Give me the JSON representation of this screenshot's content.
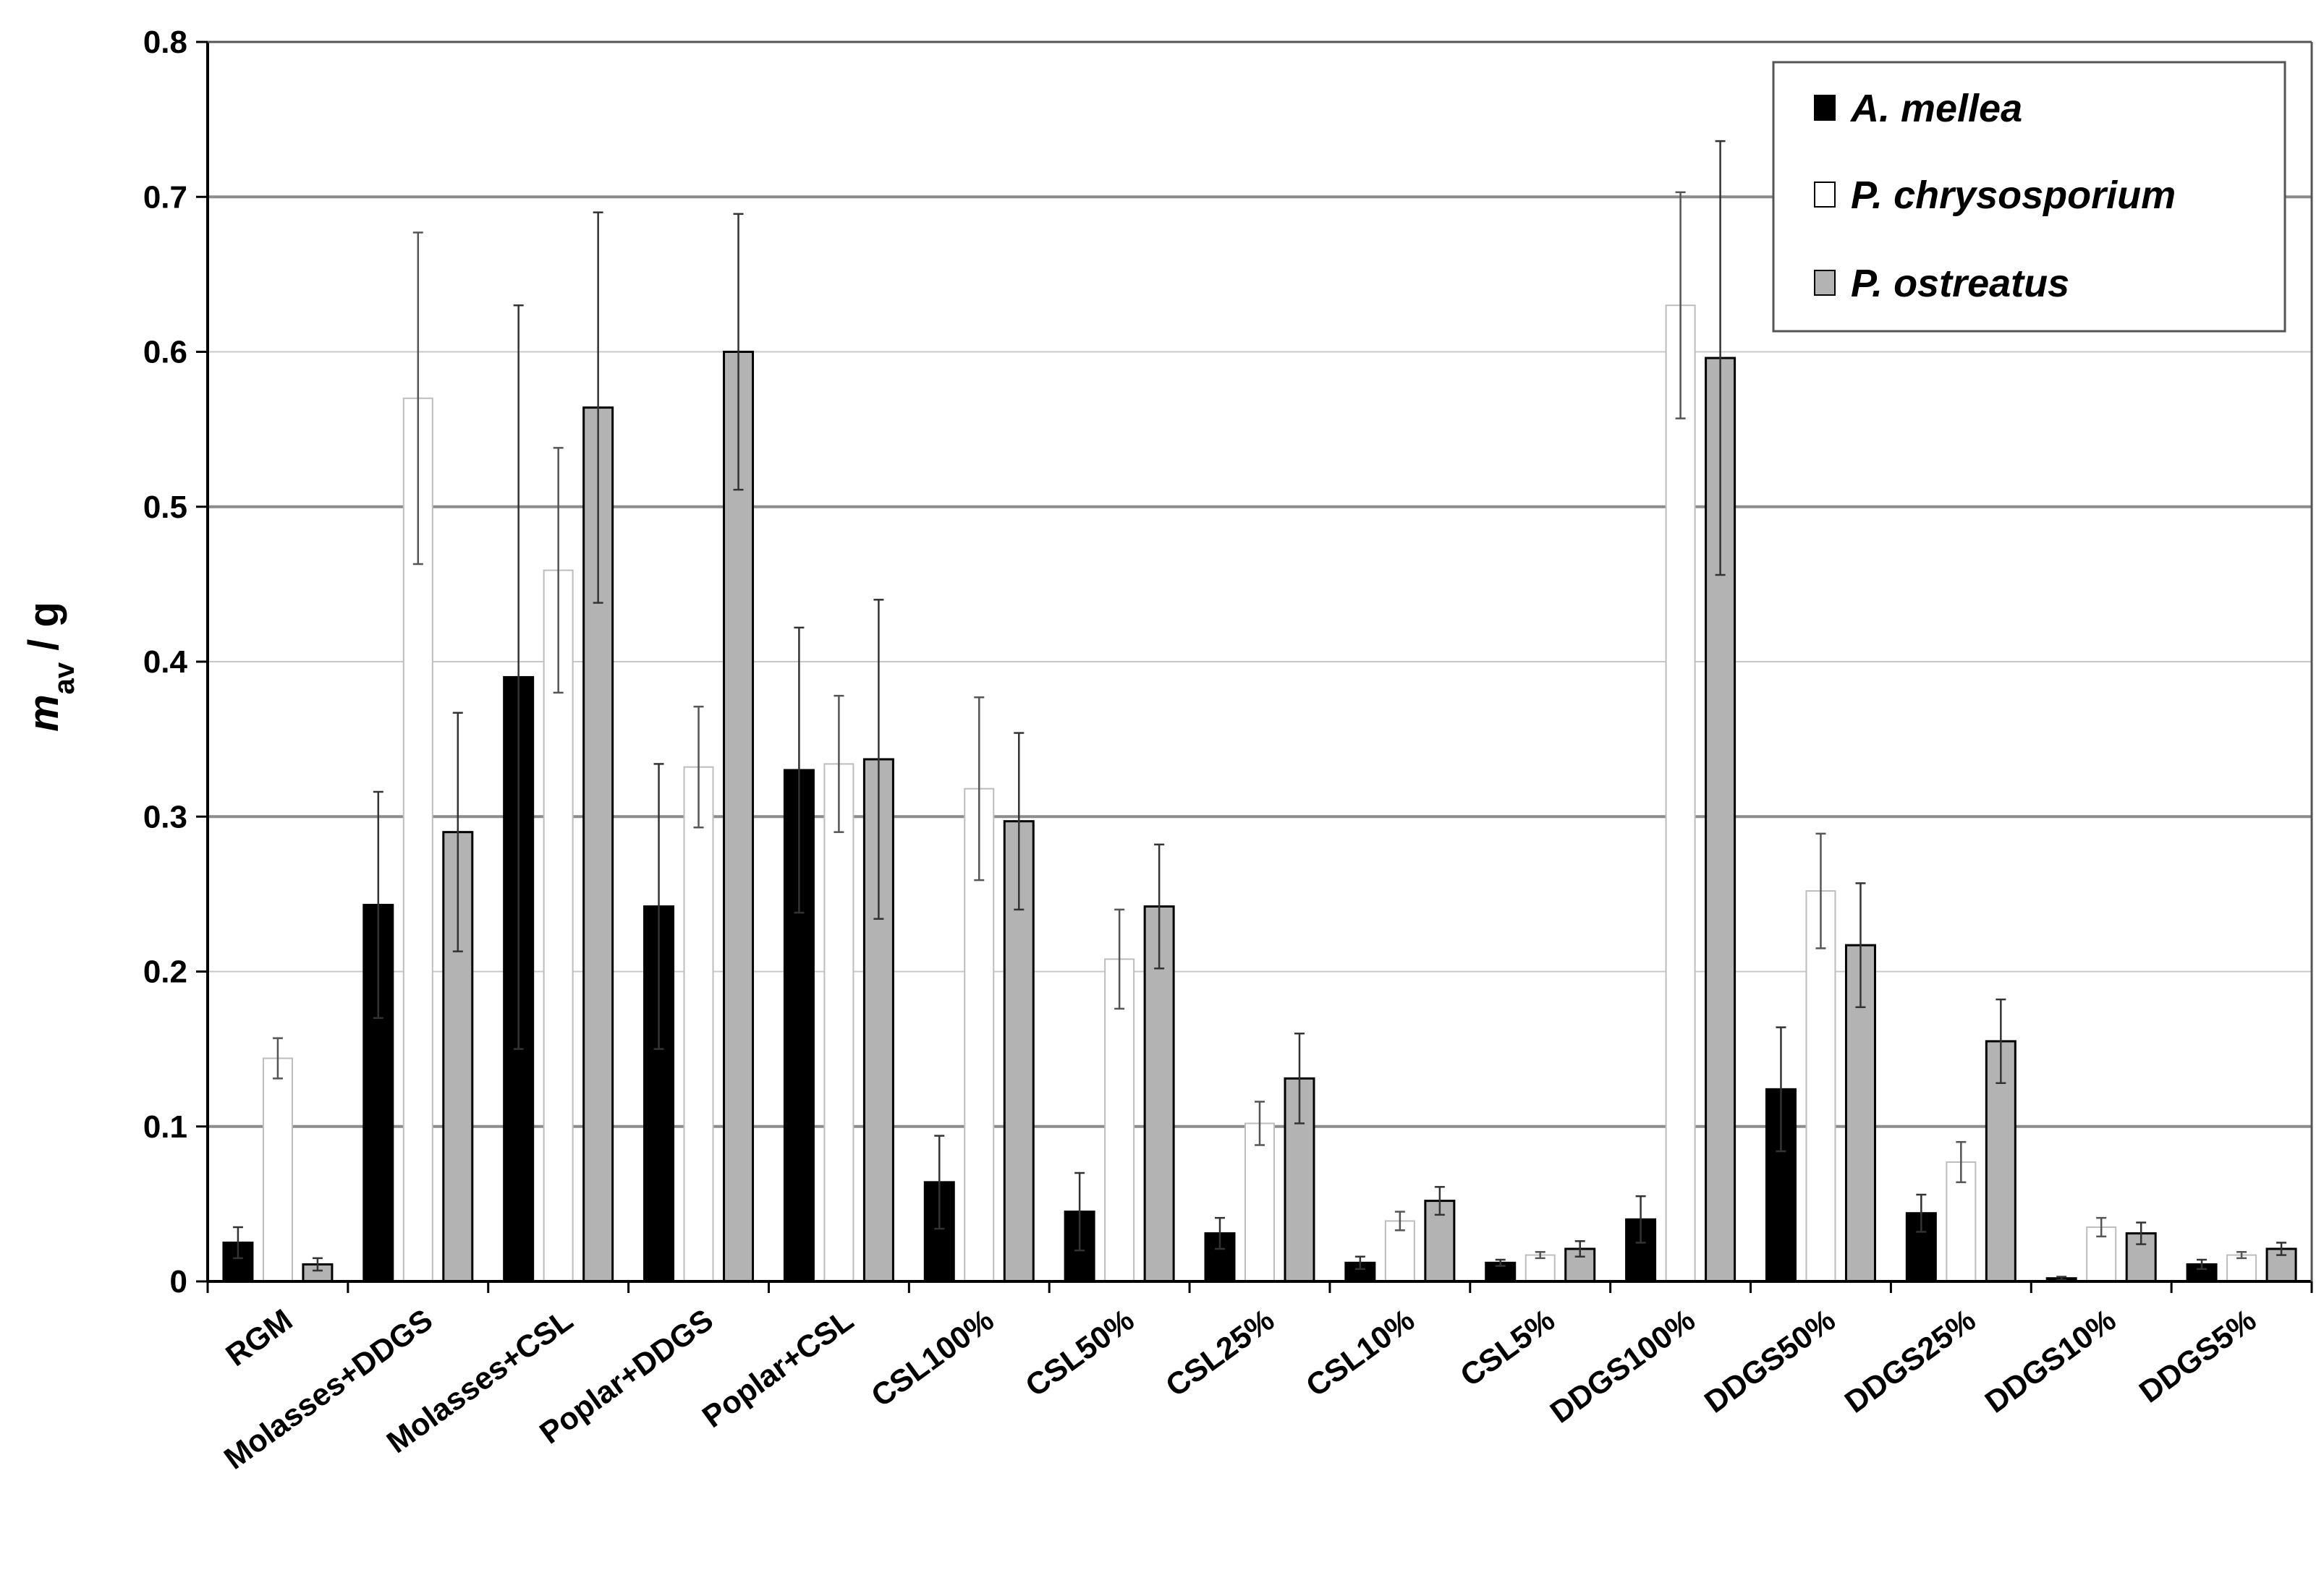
{
  "chart_data": {
    "type": "bar",
    "ylabel": "m",
    "ylabel_subscript": "av",
    "ylabel_unit": " / g",
    "ylim": [
      0,
      0.8
    ],
    "yticks": [
      "0",
      "0.1",
      "0.2",
      "0.3",
      "0.4",
      "0.5",
      "0.6",
      "0.7",
      "0.8"
    ],
    "grid": true,
    "legend_position": "top-right",
    "categories": [
      "RGM",
      "Molasses+DDGS",
      "Molasses+CSL",
      "Poplar+DDGS",
      "Poplar+CSL",
      "CSL100%",
      "CSL50%",
      "CSL25%",
      "CSL10%",
      "CSL5%",
      "DDGS100%",
      "DDGS50%",
      "DDGS25%",
      "DDGS10%",
      "DDGS5%"
    ],
    "series": [
      {
        "name": "A. mellea",
        "color": "#000000",
        "values": [
          0.025,
          0.243,
          0.39,
          0.242,
          0.33,
          0.064,
          0.045,
          0.031,
          0.012,
          0.012,
          0.04,
          0.124,
          0.044,
          0.002,
          0.011
        ],
        "errors": [
          0.01,
          0.073,
          0.24,
          0.092,
          0.092,
          0.03,
          0.025,
          0.01,
          0.004,
          0.002,
          0.015,
          0.04,
          0.012,
          0.001,
          0.003
        ]
      },
      {
        "name": "P. chrysosporium",
        "color": "#ffffff",
        "values": [
          0.144,
          0.57,
          0.459,
          0.332,
          0.334,
          0.318,
          0.208,
          0.102,
          0.039,
          0.017,
          0.63,
          0.252,
          0.077,
          0.035,
          0.017
        ],
        "errors": [
          0.013,
          0.107,
          0.079,
          0.039,
          0.044,
          0.059,
          0.032,
          0.014,
          0.006,
          0.002,
          0.073,
          0.037,
          0.013,
          0.006,
          0.002
        ]
      },
      {
        "name": "P. ostreatus",
        "color": "#b3b3b3",
        "values": [
          0.011,
          0.29,
          0.564,
          0.6,
          0.337,
          0.297,
          0.242,
          0.131,
          0.052,
          0.021,
          0.596,
          0.217,
          0.155,
          0.031,
          0.021
        ],
        "errors": [
          0.004,
          0.077,
          0.126,
          0.089,
          0.103,
          0.057,
          0.04,
          0.029,
          0.009,
          0.005,
          0.14,
          0.04,
          0.027,
          0.007,
          0.004
        ]
      }
    ]
  }
}
